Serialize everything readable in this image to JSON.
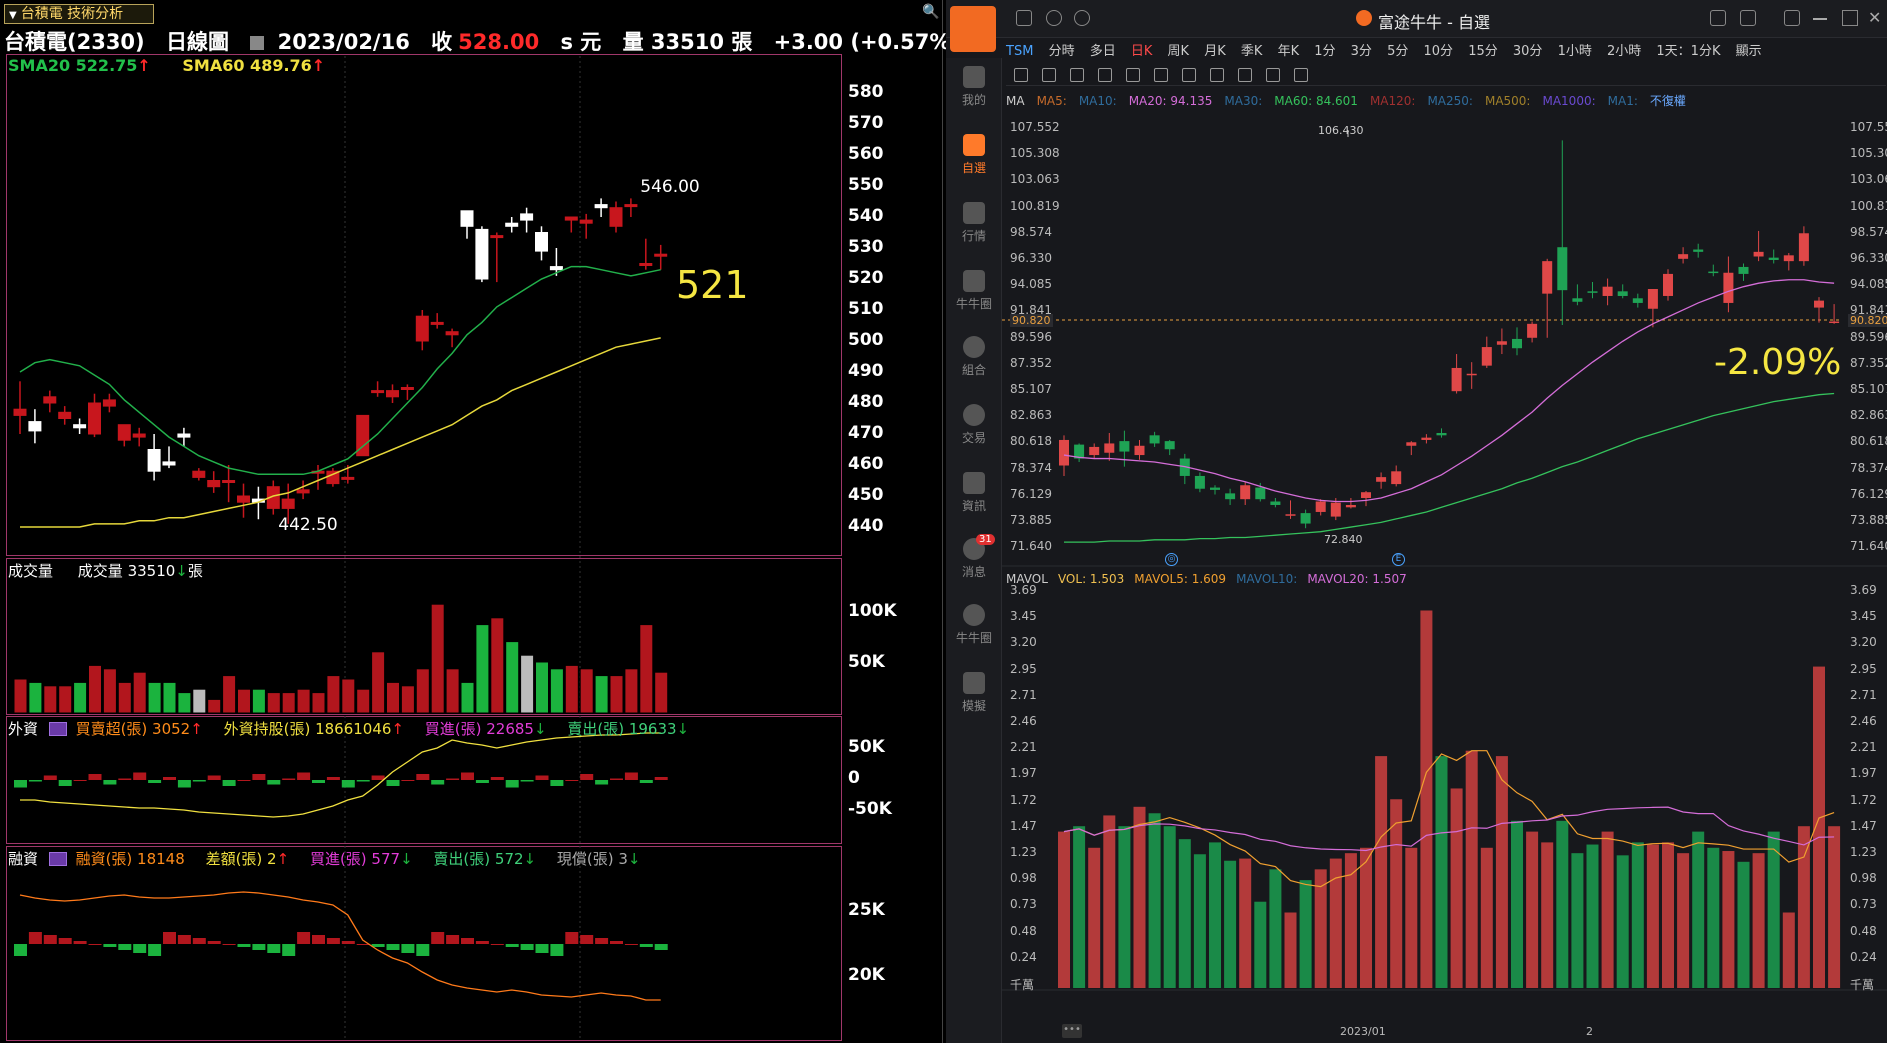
{
  "left": {
    "tab_label": "台積電 技術分析",
    "stock_name": "台積電(2330)",
    "chart_type": "日線圖",
    "date": "2023/02/16",
    "close_label": "收",
    "close_value": "528.00",
    "unit": "s 元",
    "volume_label": "量 33510 張",
    "change": "+3.00 (+0.57%)",
    "sma20": "SMA20 522.75",
    "sma60": "SMA60 489.76",
    "high_label": "546.00",
    "low_label": "442.50",
    "annotation": "521",
    "price_ticks": [
      "580",
      "570",
      "560",
      "550",
      "540",
      "530",
      "520",
      "510",
      "500",
      "490",
      "480",
      "470",
      "460",
      "450",
      "440"
    ],
    "volume_header_title": "成交量",
    "volume_header_value": "成交量 33510",
    "volume_header_unit": "張",
    "volume_ticks": [
      "100K",
      "50K"
    ],
    "foreign": {
      "title": "外資",
      "net": "買賣超(張) 3052",
      "holding": "外資持股(張) 18661046",
      "buy": "買進(張) 22685",
      "sell": "賣出(張) 19633",
      "ticks": [
        "50K",
        "0",
        "-50K"
      ]
    },
    "margin": {
      "title": "融資",
      "fin": "融資(張) 18148",
      "diff": "差額(張) 2",
      "buy": "買進(張) 577",
      "sell": "賣出(張) 572",
      "cash": "現償(張) 3",
      "ticks": [
        "25K",
        "20K"
      ]
    },
    "colors": {
      "up": "#c8161d",
      "down": "#1db33e",
      "flat": "#ffffff",
      "sma20": "#22b04b",
      "sma60": "#e6d83b"
    }
  },
  "right": {
    "app_title": "富途牛牛 - 自選",
    "sidebar": [
      "我的",
      "自選",
      "行情",
      "牛牛圈",
      "組合",
      "交易",
      "資訊",
      "消息",
      "牛牛圈",
      "模擬"
    ],
    "message_badge": "31",
    "symbol": "TSM",
    "periods": [
      "分時",
      "多日",
      "日K",
      "周K",
      "月K",
      "季K",
      "年K",
      "1分",
      "3分",
      "5分",
      "10分",
      "15分",
      "30分",
      "1小時",
      "2小時",
      "1天：1分K",
      "顯示"
    ],
    "active_period": "日K",
    "ma_header": [
      {
        "label": "MA",
        "color": "#cccccc"
      },
      {
        "label": "MA5:",
        "color": "#c46a2b"
      },
      {
        "label": "MA10:",
        "color": "#2f6c9c"
      },
      {
        "label": "MA20: 94.135",
        "color": "#d46dd8"
      },
      {
        "label": "MA30:",
        "color": "#2f6c9c"
      },
      {
        "label": "MA60: 84.601",
        "color": "#35c25c"
      },
      {
        "label": "MA120:",
        "color": "#a03030"
      },
      {
        "label": "MA250:",
        "color": "#2f6c9c"
      },
      {
        "label": "MA500:",
        "color": "#a0802a"
      },
      {
        "label": "MA1000:",
        "color": "#6a4ad0"
      },
      {
        "label": "MA1:",
        "color": "#2f6c9c"
      },
      {
        "label": "不復權",
        "color": "#6aa9ff"
      }
    ],
    "price_ticks": [
      "107.552",
      "105.308",
      "103.063",
      "100.819",
      "98.574",
      "96.330",
      "94.085",
      "91.841",
      "89.596",
      "87.352",
      "85.107",
      "82.863",
      "80.618",
      "78.374",
      "76.129",
      "73.885",
      "71.640"
    ],
    "current_price": "90.820",
    "high_label": "106.430",
    "low_label": "72.840",
    "pct_annotation": "-2.09%",
    "vol_header": [
      {
        "label": "MAVOL",
        "color": "#cccccc"
      },
      {
        "label": "VOL: 1.503",
        "color": "#f0c050"
      },
      {
        "label": "MAVOL5: 1.609",
        "color": "#f0a030"
      },
      {
        "label": "MAVOL10:",
        "color": "#2f6c9c"
      },
      {
        "label": "MAVOL20: 1.507",
        "color": "#d46dd8"
      }
    ],
    "vol_ticks": [
      "3.69",
      "3.45",
      "3.20",
      "2.95",
      "2.71",
      "2.46",
      "2.21",
      "1.97",
      "1.72",
      "1.47",
      "1.23",
      "0.98",
      "0.73",
      "0.48",
      "0.24",
      "千萬"
    ],
    "x_labels": [
      "2023/01",
      "2"
    ],
    "colors": {
      "up": "#e04848",
      "down": "#1fa355",
      "ma20": "#d46dd8",
      "ma60": "#35c25c",
      "annotation": "#f5e642"
    }
  }
}
